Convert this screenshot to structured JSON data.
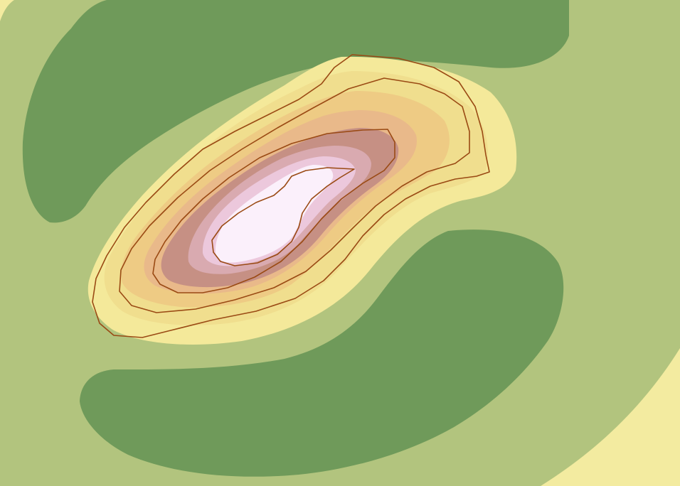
{
  "map": {
    "type": "elevation-surface",
    "style": "filled contour bands with contour lines",
    "band_colors": {
      "lowland_outer": "#f3eba0",
      "low_green": "#b2c47e",
      "valley_dark_green": "#6f9a5a",
      "light_yellow": "#f4e99a",
      "yellow_tan": "#f0de8e",
      "tan": "#eecb84",
      "light_tan": "#e9b98a",
      "rose_brown": "#c69084",
      "mauve": "#d9aab0",
      "light_pink": "#ecc8dc",
      "peak_white": "#fbf0fb"
    },
    "contour_line_color": "#9a4a14"
  }
}
